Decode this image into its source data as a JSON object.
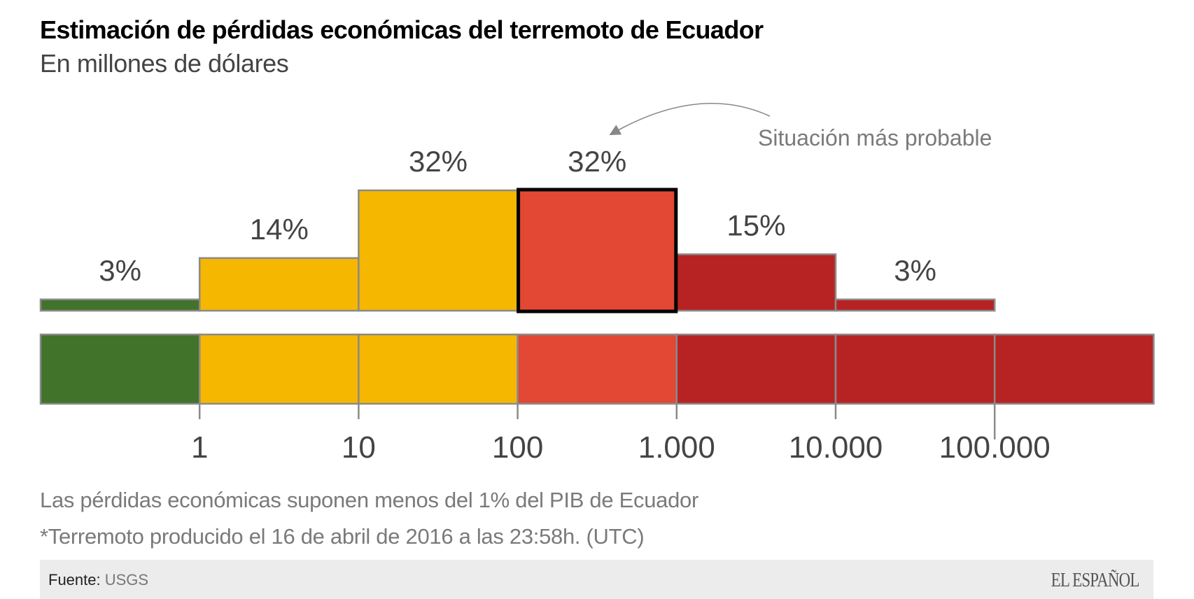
{
  "header": {
    "title": "Estimación de pérdidas económicas del terremoto de Ecuador",
    "subtitle": "En millones de dólares"
  },
  "chart_data": {
    "type": "bar",
    "title": "Estimación de pérdidas económicas del terremoto de Ecuador",
    "subtitle": "En millones de dólares",
    "xlabel": "",
    "ylabel": "",
    "x_scale": "log10",
    "categories": [
      "<1",
      "1-10",
      "10-100",
      "100-1.000",
      "1.000-10.000",
      "10.000-100.000"
    ],
    "values": [
      3,
      14,
      32,
      32,
      15,
      3
    ],
    "value_labels": [
      "3%",
      "14%",
      "32%",
      "32%",
      "15%",
      "3%"
    ],
    "bar_colors": [
      "#41732a",
      "#f5b700",
      "#f5b700",
      "#e24834",
      "#b72322",
      "#b72322"
    ],
    "highlighted_index": 3,
    "scale_band": {
      "segments": 7,
      "colors": [
        "#41732a",
        "#f5b700",
        "#f5b700",
        "#e24834",
        "#b72322",
        "#b72322",
        "#b72322"
      ]
    },
    "tick_labels": [
      "1",
      "10",
      "100",
      "1.000",
      "10.000",
      "100.000"
    ],
    "annotation": {
      "text": "Situación más probable",
      "target_index": 3
    },
    "ylim": [
      0,
      32
    ],
    "grid": false,
    "legend": "none"
  },
  "notes": {
    "line1": "Las pérdidas económicas suponen menos del 1% del PIB de Ecuador",
    "line2": "*Terremoto producido el 16 de abril de 2016 a las 23:58h. (UTC)"
  },
  "footer": {
    "source_label": "Fuente:",
    "source_value": "USGS",
    "logo": "EL ESPAÑOL"
  },
  "colors": {
    "outline": "#8a8a8a",
    "highlight_border": "#000000",
    "label_text": "#444444",
    "annotation_text": "#7a7a7a",
    "footer_bg": "#ececed"
  }
}
